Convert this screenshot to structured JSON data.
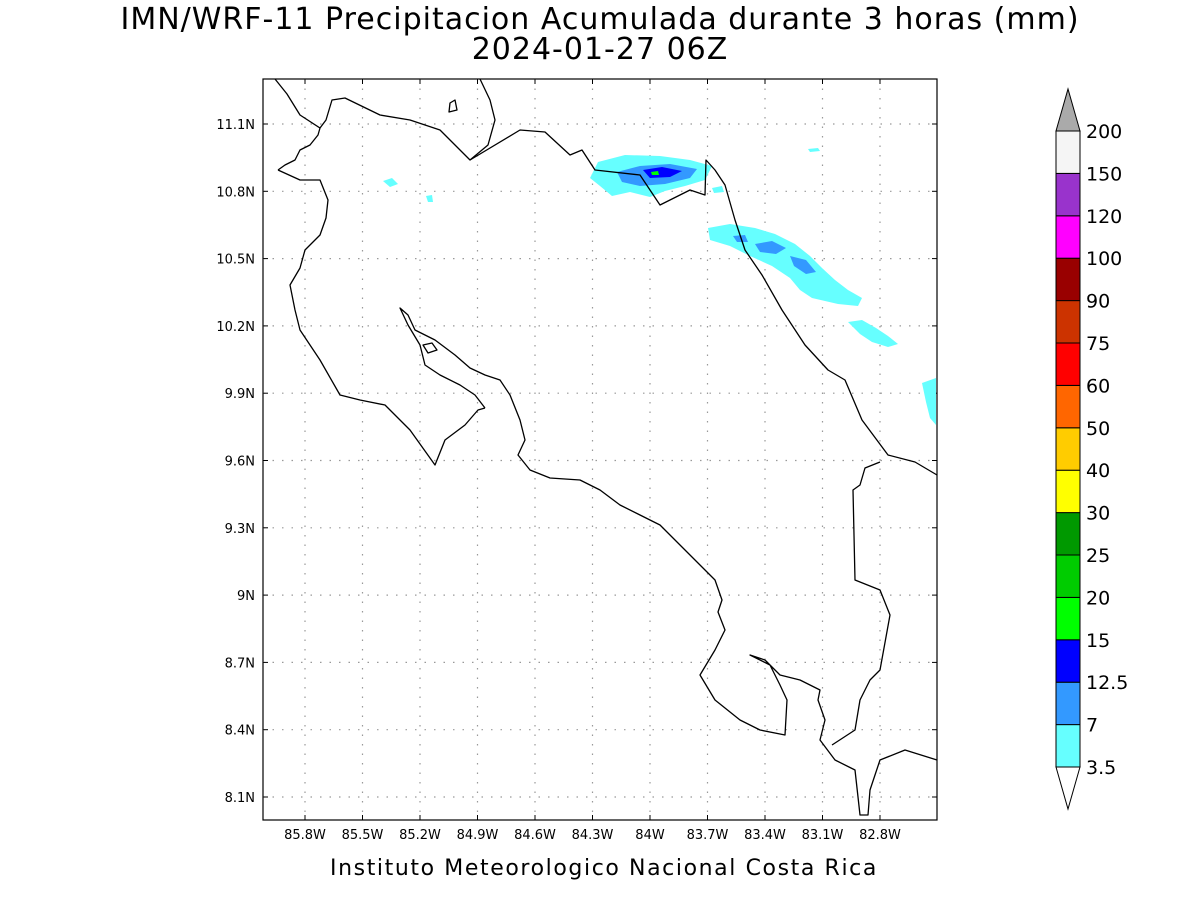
{
  "title": {
    "line1": "IMN/WRF-11 Precipitacion Acumulada durante 3 horas (mm)",
    "line2": "2024-01-27 06Z"
  },
  "footer": "Instituto Meteorologico Nacional Costa Rica",
  "map": {
    "lat_labels": [
      "11.1N",
      "10.8N",
      "10.5N",
      "10.2N",
      "9.9N",
      "9.6N",
      "9.3N",
      "9N",
      "8.7N",
      "8.4N",
      "8.1N"
    ],
    "lat_values": [
      11.1,
      10.8,
      10.5,
      10.2,
      9.9,
      9.6,
      9.3,
      9.0,
      8.7,
      8.4,
      8.1
    ],
    "lon_labels": [
      "85.8W",
      "85.5W",
      "85.2W",
      "84.9W",
      "84.6W",
      "84.3W",
      "84W",
      "83.7W",
      "83.4W",
      "83.1W",
      "82.8W"
    ],
    "lon_values": [
      -85.8,
      -85.5,
      -85.2,
      -84.9,
      -84.6,
      -84.3,
      -84.0,
      -83.7,
      -83.4,
      -83.1,
      -82.8
    ]
  },
  "colorbar": {
    "labels": [
      "3.5",
      "7",
      "12.5",
      "15",
      "20",
      "25",
      "30",
      "40",
      "50",
      "60",
      "75",
      "90",
      "100",
      "120",
      "150",
      "200"
    ],
    "colors": [
      "#66ffff",
      "#3399ff",
      "#0000ff",
      "#00ff00",
      "#00cc00",
      "#009900",
      "#ffff00",
      "#ffcc00",
      "#ff6600",
      "#ff0000",
      "#cc3300",
      "#990000",
      "#ff00ff",
      "#9933cc",
      "#f5f5f5",
      "#aaaaaa"
    ]
  }
}
